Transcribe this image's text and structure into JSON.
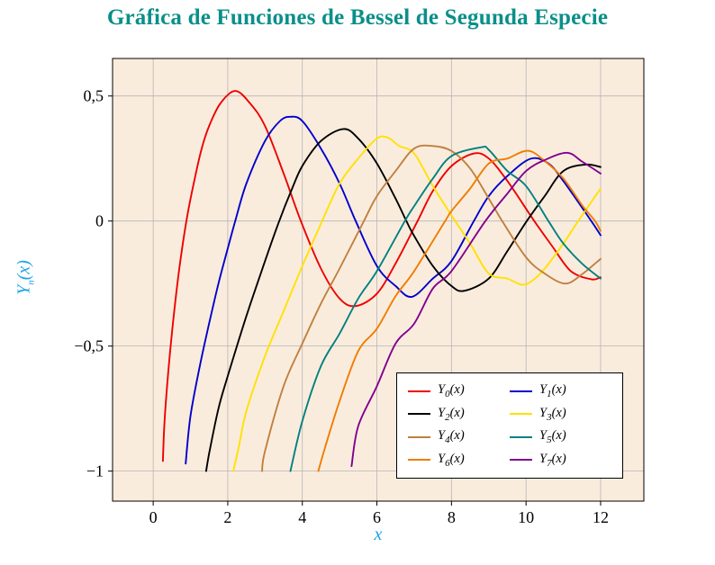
{
  "colors": {
    "title": "#0a8f89",
    "axis_label": "#1fa3e6",
    "plot_bg": "#faecdd",
    "grid": "#b5b5b5",
    "axis": "#000000",
    "tick_label": "#000000",
    "legend_bg": "#ffffff",
    "legend_border": "#000000"
  },
  "chart_data": {
    "type": "line",
    "title": "Gráfica de Funciones de Bessel de Segunda Especie",
    "xlabel": "x",
    "ylabel_base": "Y",
    "ylabel_sub": "n",
    "ylabel_arg": "(x)",
    "xlim": [
      -1.09,
      13.16
    ],
    "ylim": [
      -1.12,
      0.65
    ],
    "x_ticks": [
      0,
      2,
      4,
      6,
      8,
      10,
      12
    ],
    "x_tick_labels": [
      "0",
      "2",
      "4",
      "6",
      "8",
      "10",
      "12"
    ],
    "y_ticks": [
      -1,
      -0.5,
      0,
      0.5
    ],
    "y_tick_labels": [
      "−1",
      "−0,5",
      "0",
      "0,5"
    ],
    "grid": true,
    "legend_position": "south east",
    "series": [
      {
        "name": "Y_0(x)",
        "label_base": "Y",
        "label_sub": "0",
        "label_arg": "(x)",
        "color": "#ee0000",
        "points": [
          [
            0.26,
            -0.96
          ],
          [
            0.3,
            -0.81
          ],
          [
            0.4,
            -0.61
          ],
          [
            0.55,
            -0.38
          ],
          [
            0.7,
            -0.19
          ],
          [
            0.89,
            0
          ],
          [
            1.1,
            0.16
          ],
          [
            1.3,
            0.29
          ],
          [
            1.5,
            0.38
          ],
          [
            1.8,
            0.47
          ],
          [
            2.2,
            0.52
          ],
          [
            2.6,
            0.47
          ],
          [
            3,
            0.38
          ],
          [
            3.5,
            0.19
          ],
          [
            3.96,
            0
          ],
          [
            4.5,
            -0.19
          ],
          [
            5,
            -0.31
          ],
          [
            5.43,
            -0.34
          ],
          [
            6,
            -0.29
          ],
          [
            6.5,
            -0.17
          ],
          [
            7.09,
            0
          ],
          [
            7.5,
            0.12
          ],
          [
            8,
            0.22
          ],
          [
            8.6,
            0.27
          ],
          [
            9,
            0.25
          ],
          [
            9.5,
            0.16
          ],
          [
            10.22,
            0
          ],
          [
            10.7,
            -0.1
          ],
          [
            11.2,
            -0.2
          ],
          [
            11.75,
            -0.233
          ],
          [
            12,
            -0.225
          ]
        ]
      },
      {
        "name": "Y_1(x)",
        "label_base": "Y",
        "label_sub": "1",
        "label_arg": "(x)",
        "color": "#0000cc",
        "points": [
          [
            0.87,
            -0.97
          ],
          [
            1,
            -0.78
          ],
          [
            1.25,
            -0.58
          ],
          [
            1.5,
            -0.41
          ],
          [
            1.75,
            -0.25
          ],
          [
            2,
            -0.11
          ],
          [
            2.2,
            0
          ],
          [
            2.5,
            0.15
          ],
          [
            3,
            0.32
          ],
          [
            3.4,
            0.4
          ],
          [
            3.68,
            0.417
          ],
          [
            4,
            0.4
          ],
          [
            4.5,
            0.29
          ],
          [
            5,
            0.15
          ],
          [
            5.43,
            0
          ],
          [
            6,
            -0.18
          ],
          [
            6.5,
            -0.26
          ],
          [
            6.94,
            -0.303
          ],
          [
            7.5,
            -0.23
          ],
          [
            8,
            -0.16
          ],
          [
            8.6,
            0
          ],
          [
            9,
            0.1
          ],
          [
            9.5,
            0.18
          ],
          [
            10.12,
            0.249
          ],
          [
            10.6,
            0.23
          ],
          [
            11,
            0.16
          ],
          [
            11.75,
            0
          ],
          [
            12,
            -0.057
          ]
        ]
      },
      {
        "name": "Y_2(x)",
        "label_base": "Y",
        "label_sub": "2",
        "label_arg": "(x)",
        "color": "#000000",
        "points": [
          [
            1.42,
            -1
          ],
          [
            1.5,
            -0.93
          ],
          [
            1.75,
            -0.75
          ],
          [
            2,
            -0.62
          ],
          [
            2.5,
            -0.38
          ],
          [
            3,
            -0.16
          ],
          [
            3.38,
            0
          ],
          [
            3.7,
            0.12
          ],
          [
            4,
            0.22
          ],
          [
            4.5,
            0.32
          ],
          [
            5.1,
            0.368
          ],
          [
            5.5,
            0.33
          ],
          [
            6,
            0.23
          ],
          [
            6.5,
            0.09
          ],
          [
            6.79,
            0
          ],
          [
            7,
            -0.06
          ],
          [
            7.5,
            -0.18
          ],
          [
            8,
            -0.26
          ],
          [
            8.35,
            -0.279
          ],
          [
            9,
            -0.23
          ],
          [
            9.5,
            -0.12
          ],
          [
            10.02,
            0
          ],
          [
            10.5,
            0.1
          ],
          [
            11,
            0.2
          ],
          [
            11.6,
            0.226
          ],
          [
            12,
            0.216
          ]
        ]
      },
      {
        "name": "Y_3(x)",
        "label_base": "Y",
        "label_sub": "3",
        "label_arg": "(x)",
        "color": "#ffe200",
        "points": [
          [
            2.15,
            -1
          ],
          [
            2.3,
            -0.9
          ],
          [
            2.5,
            -0.76
          ],
          [
            3,
            -0.54
          ],
          [
            3.5,
            -0.36
          ],
          [
            4,
            -0.18
          ],
          [
            4.53,
            0
          ],
          [
            5,
            0.15
          ],
          [
            5.5,
            0.25
          ],
          [
            6,
            0.33
          ],
          [
            6.3,
            0.333
          ],
          [
            6.6,
            0.3
          ],
          [
            7,
            0.27
          ],
          [
            7.5,
            0.14
          ],
          [
            8.1,
            0
          ],
          [
            8.5,
            -0.09
          ],
          [
            9,
            -0.21
          ],
          [
            9.5,
            -0.23
          ],
          [
            9.9,
            -0.255
          ],
          [
            10.2,
            -0.235
          ],
          [
            10.5,
            -0.19
          ],
          [
            11,
            -0.09
          ],
          [
            11.4,
            0
          ],
          [
            12,
            0.13
          ]
        ]
      },
      {
        "name": "Y_4(x)",
        "label_base": "Y",
        "label_sub": "4",
        "label_arg": "(x)",
        "color": "#bf8040",
        "points": [
          [
            2.92,
            -1
          ],
          [
            3,
            -0.92
          ],
          [
            3.5,
            -0.66
          ],
          [
            4,
            -0.49
          ],
          [
            4.5,
            -0.33
          ],
          [
            5,
            -0.19
          ],
          [
            5.65,
            0
          ],
          [
            6,
            0.1
          ],
          [
            6.5,
            0.2
          ],
          [
            7,
            0.29
          ],
          [
            7.5,
            0.3
          ],
          [
            8,
            0.28
          ],
          [
            8.5,
            0.21
          ],
          [
            9,
            0.09
          ],
          [
            9.36,
            0
          ],
          [
            10,
            -0.145
          ],
          [
            10.5,
            -0.21
          ],
          [
            11.05,
            -0.25
          ],
          [
            11.5,
            -0.213
          ],
          [
            12,
            -0.151
          ]
        ]
      },
      {
        "name": "Y_5(x)",
        "label_base": "Y",
        "label_sub": "5",
        "label_arg": "(x)",
        "color": "#008080",
        "points": [
          [
            3.68,
            -1
          ],
          [
            4,
            -0.8
          ],
          [
            4.5,
            -0.58
          ],
          [
            5,
            -0.45
          ],
          [
            5.5,
            -0.31
          ],
          [
            6,
            -0.2
          ],
          [
            6.75,
            0
          ],
          [
            7,
            0.06
          ],
          [
            7.5,
            0.17
          ],
          [
            8,
            0.26
          ],
          [
            8.8,
            0.295
          ],
          [
            9,
            0.285
          ],
          [
            9.5,
            0.2
          ],
          [
            10,
            0.14
          ],
          [
            10.6,
            0
          ],
          [
            11,
            -0.09
          ],
          [
            11.5,
            -0.17
          ],
          [
            12,
            -0.23
          ]
        ]
      },
      {
        "name": "Y_6(x)",
        "label_base": "Y",
        "label_sub": "6",
        "label_arg": "(x)",
        "color": "#ef7d00",
        "points": [
          [
            4.43,
            -1
          ],
          [
            4.6,
            -0.91
          ],
          [
            5,
            -0.72
          ],
          [
            5.5,
            -0.52
          ],
          [
            6,
            -0.43
          ],
          [
            6.5,
            -0.3
          ],
          [
            7,
            -0.2
          ],
          [
            7.83,
            0
          ],
          [
            8,
            0.04
          ],
          [
            8.5,
            0.13
          ],
          [
            9,
            0.23
          ],
          [
            9.5,
            0.25
          ],
          [
            10.05,
            0.281
          ],
          [
            10.5,
            0.24
          ],
          [
            11,
            0.17
          ],
          [
            11.5,
            0.064
          ],
          [
            11.85,
            0
          ],
          [
            12,
            -0.04
          ]
        ]
      },
      {
        "name": "Y_7(x)",
        "label_base": "Y",
        "label_sub": "7",
        "label_arg": "(x)",
        "color": "#800090",
        "points": [
          [
            5.32,
            -0.98
          ],
          [
            5.5,
            -0.82
          ],
          [
            6,
            -0.66
          ],
          [
            6.5,
            -0.49
          ],
          [
            7,
            -0.41
          ],
          [
            7.5,
            -0.27
          ],
          [
            8,
            -0.2
          ],
          [
            8.91,
            0
          ],
          [
            9.5,
            0.11
          ],
          [
            10,
            0.2
          ],
          [
            10.5,
            0.244
          ],
          [
            11.1,
            0.273
          ],
          [
            11.5,
            0.238
          ],
          [
            12,
            0.19
          ]
        ]
      }
    ]
  }
}
